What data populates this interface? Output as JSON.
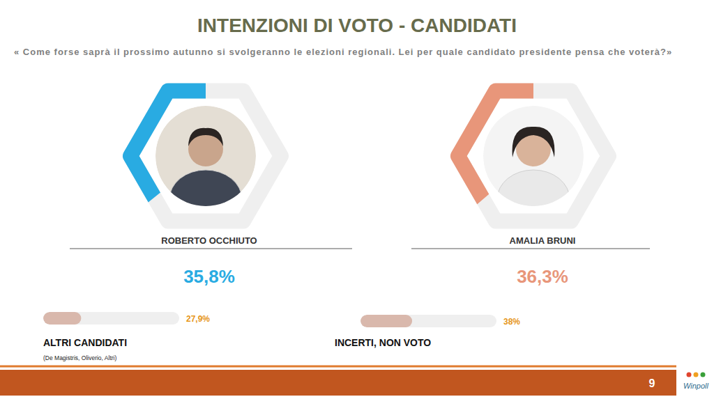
{
  "chart_data": [
    {
      "type": "donut",
      "title": "INTENZIONI DI VOTO - CANDIDATI",
      "subtitle": "« Come forse saprà il prossimo autunno si svolgeranno le elezioni regionali. Lei per quale candidato presidente pensa che voterà?»",
      "categories": [
        "ROBERTO OCCHIUTO",
        "AMALIA BRUNI"
      ],
      "values": [
        35.8,
        36.3
      ],
      "value_labels": [
        "35,8%",
        "36,3%"
      ],
      "colors": [
        "#29abe2",
        "#e8967a"
      ],
      "ylim": [
        0,
        100
      ],
      "data_labels": true
    },
    {
      "type": "bar",
      "orientation": "horizontal",
      "categories": [
        "ALTRI CANDIDATI",
        "INCERTI, NON VOTO"
      ],
      "values": [
        27.9,
        38
      ],
      "value_labels": [
        "27,9%",
        "38%"
      ],
      "annotations": [
        "(De Magistris, Oliverio, Altri)"
      ],
      "color": "#d9b8ac",
      "xlim": [
        0,
        100
      ],
      "data_labels": true,
      "tick_labels": false
    }
  ],
  "footer": {
    "page": "9",
    "logo": "Winpoll"
  }
}
